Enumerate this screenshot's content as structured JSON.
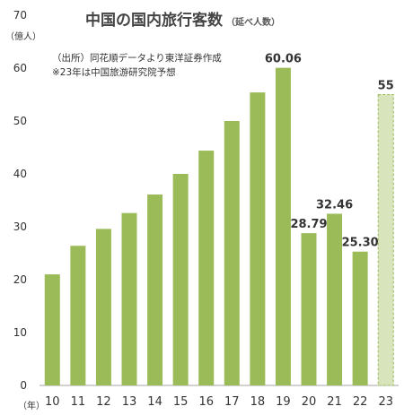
{
  "chart_data": {
    "type": "bar",
    "title": "中国の国内旅行客数",
    "subtitle": "（延べ人数）",
    "ylabel": "（億人）",
    "xlabel": "（年）",
    "notes": [
      "（出所）同花順データより東洋証券作成",
      "※23年は中国旅游研究院予想"
    ],
    "categories": [
      "10",
      "11",
      "12",
      "13",
      "14",
      "15",
      "16",
      "17",
      "18",
      "19",
      "20",
      "21",
      "22",
      "23"
    ],
    "values": [
      21.0,
      26.4,
      29.6,
      32.6,
      36.1,
      40.0,
      44.4,
      50.0,
      55.4,
      60.06,
      28.79,
      32.46,
      25.3,
      55
    ],
    "data_labels": [
      "",
      "",
      "",
      "",
      "",
      "",
      "",
      "",
      "",
      "60.06",
      "28.79",
      "32.46",
      "25.30",
      "55"
    ],
    "forecast_index": 13,
    "ylim": [
      0,
      70
    ],
    "yticks": [
      0,
      10,
      20,
      30,
      40,
      50,
      60,
      70
    ],
    "grid": false,
    "colors": {
      "bar": "#9bbb59",
      "forecast": "#d7e4bc",
      "forecast_border": "#9bbb59",
      "axis": "#a6a6a6"
    }
  }
}
